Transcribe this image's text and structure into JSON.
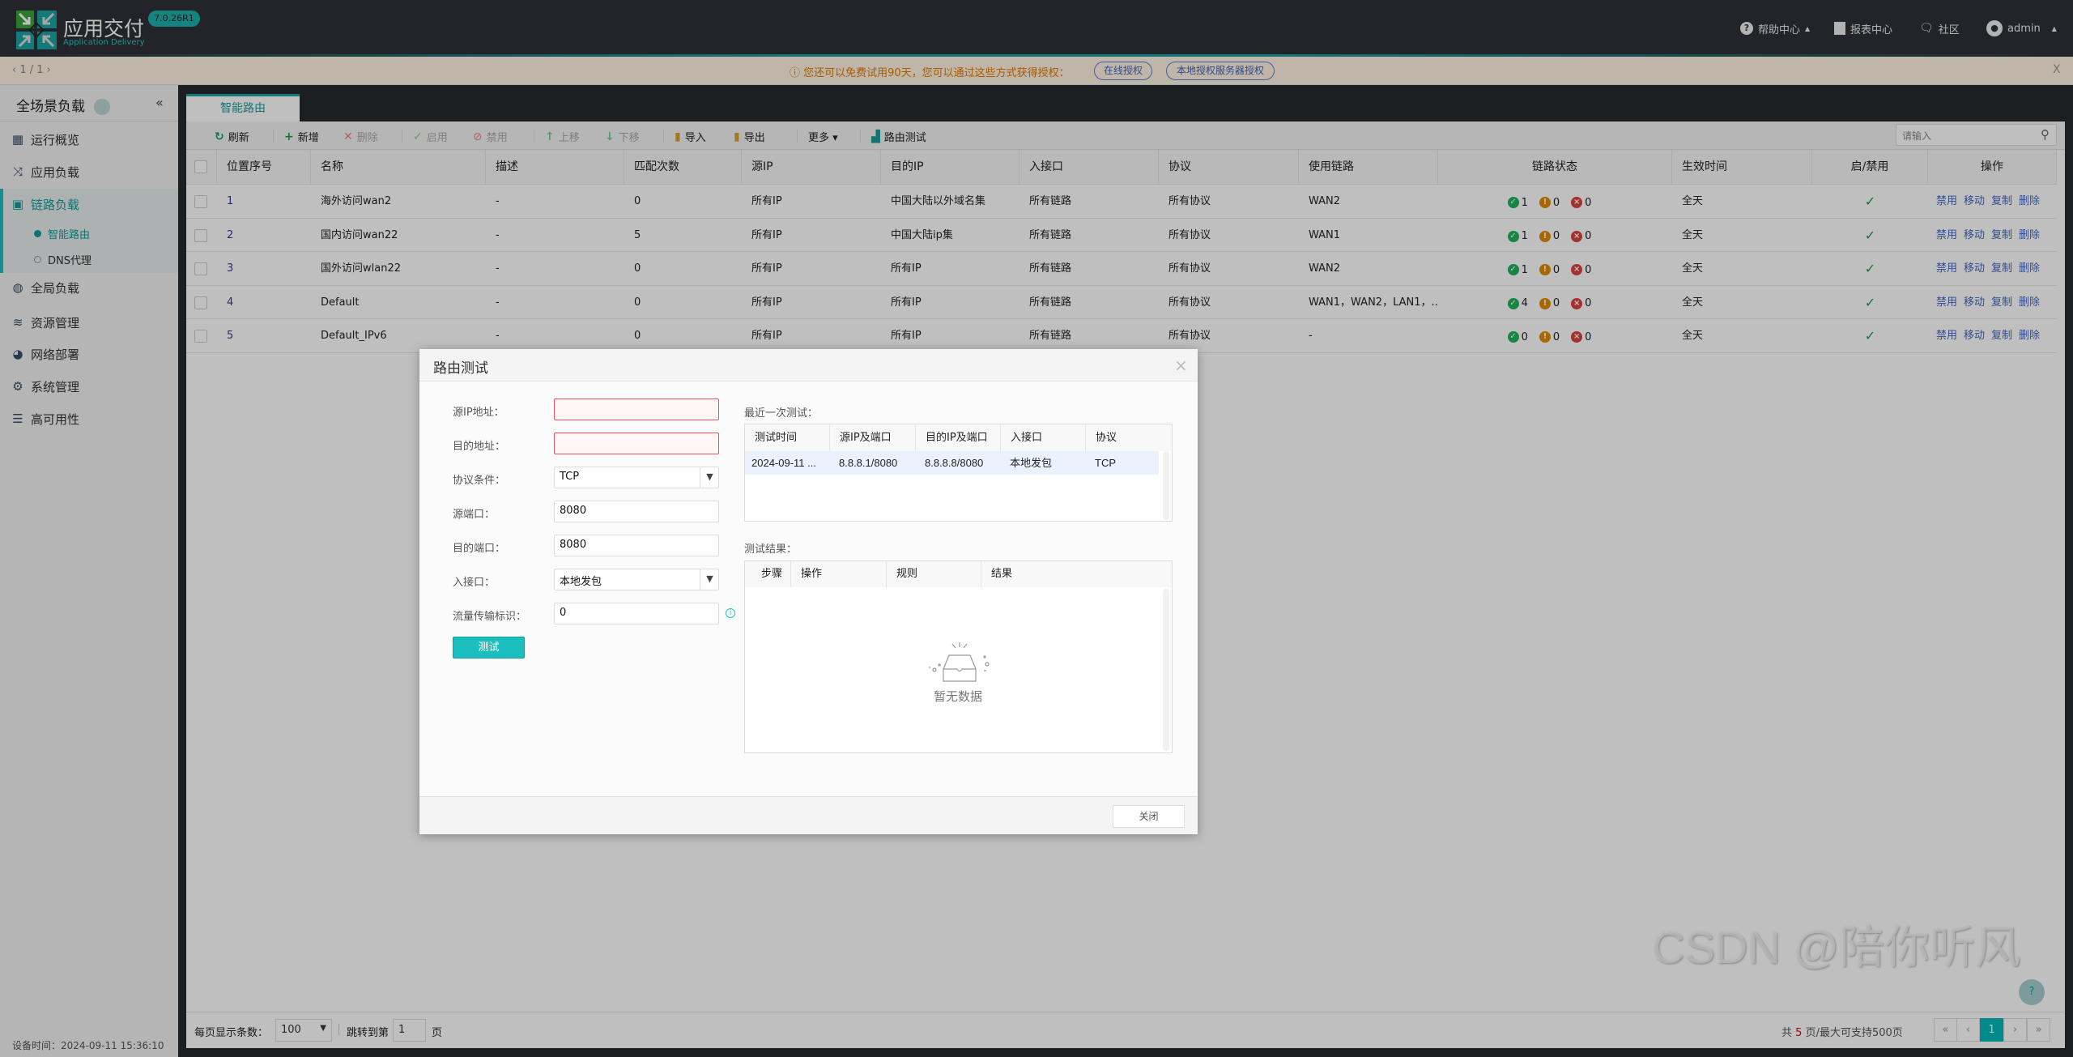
{
  "header": {
    "app_title": "应用交付",
    "app_subtitle": "Application Delivery",
    "version": "7.0.26R1",
    "nav": [
      {
        "label": "帮助中心",
        "icon": "question-circle-icon"
      },
      {
        "label": "报表中心",
        "icon": "report-chart-icon"
      },
      {
        "label": "社区",
        "icon": "chat-bubbles-icon"
      },
      {
        "label": "admin",
        "icon": "user-avatar-icon"
      }
    ]
  },
  "banner": {
    "pager": "1 / 1",
    "message": "您还可以免费试用90天，您可以通过这些方式获得授权：",
    "buttons": [
      "在线授权",
      "本地授权服务器授权"
    ],
    "close": "X"
  },
  "sidebar": {
    "title": "全场景负载",
    "collapse": "«",
    "items": [
      {
        "label": "运行概览",
        "icon": "dashboard-icon"
      },
      {
        "label": "应用负载",
        "icon": "shuffle-icon"
      },
      {
        "label": "链路负载",
        "icon": "link-load-icon",
        "active": true
      },
      {
        "label": "全局负载",
        "icon": "dns-globe-icon"
      },
      {
        "label": "资源管理",
        "icon": "layers-icon"
      },
      {
        "label": "网络部署",
        "icon": "globe-icon"
      },
      {
        "label": "系统管理",
        "icon": "gear-icon"
      },
      {
        "label": "高可用性",
        "icon": "server-stack-icon"
      }
    ],
    "subitems": [
      {
        "label": "智能路由",
        "active": true
      },
      {
        "label": "DNS代理",
        "active": false
      }
    ],
    "device_time": "设备时间：2024-09-11 15:36:10"
  },
  "tab": "智能路由",
  "toolbar": {
    "items": [
      {
        "label": "刷新",
        "icon": "refresh-icon",
        "enabled": true
      },
      {
        "label": "新增",
        "icon": "plus-icon",
        "enabled": true
      },
      {
        "label": "删除",
        "icon": "x-icon",
        "enabled": false
      },
      {
        "label": "启用",
        "icon": "check-icon",
        "enabled": false
      },
      {
        "label": "禁用",
        "icon": "ban-icon",
        "enabled": false
      },
      {
        "label": "上移",
        "icon": "arrow-up-icon",
        "enabled": false
      },
      {
        "label": "下移",
        "icon": "arrow-down-icon",
        "enabled": false
      },
      {
        "label": "导入",
        "icon": "import-icon",
        "enabled": true
      },
      {
        "label": "导出",
        "icon": "export-icon",
        "enabled": true
      },
      {
        "label": "更多 ▾",
        "icon": "",
        "enabled": true
      },
      {
        "label": "路由测试",
        "icon": "route-test-icon",
        "enabled": true
      }
    ],
    "search_placeholder": "请输入"
  },
  "table": {
    "columns": [
      "位置序号",
      "名称",
      "描述",
      "匹配次数",
      "源IP",
      "目的IP",
      "入接口",
      "协议",
      "使用链路",
      "链路状态",
      "生效时间",
      "启/禁用",
      "操作"
    ],
    "rows": [
      {
        "pos": "1",
        "name": "海外访问wan2",
        "desc": "-",
        "hits": "0",
        "src": "所有IP",
        "dst": "中国大陆以外域名集",
        "iface": "所有链路",
        "proto": "所有协议",
        "links": "WAN2",
        "ok": "1",
        "warn": "0",
        "err": "0",
        "time": "全天",
        "enabled": true
      },
      {
        "pos": "2",
        "name": "国内访问wan22",
        "desc": "-",
        "hits": "5",
        "src": "所有IP",
        "dst": "中国大陆ip集",
        "iface": "所有链路",
        "proto": "所有协议",
        "links": "WAN1",
        "ok": "1",
        "warn": "0",
        "err": "0",
        "time": "全天",
        "enabled": true
      },
      {
        "pos": "3",
        "name": "国外访问wlan22",
        "desc": "-",
        "hits": "0",
        "src": "所有IP",
        "dst": "所有IP",
        "iface": "所有链路",
        "proto": "所有协议",
        "links": "WAN2",
        "ok": "1",
        "warn": "0",
        "err": "0",
        "time": "全天",
        "enabled": true
      },
      {
        "pos": "4",
        "name": "Default",
        "desc": "-",
        "hits": "0",
        "src": "所有IP",
        "dst": "所有IP",
        "iface": "所有链路",
        "proto": "所有协议",
        "links": "WAN1，WAN2，LAN1，...",
        "ok": "4",
        "warn": "0",
        "err": "0",
        "time": "全天",
        "enabled": true
      },
      {
        "pos": "5",
        "name": "Default_IPv6",
        "desc": "-",
        "hits": "0",
        "src": "所有IP",
        "dst": "所有IP",
        "iface": "所有链路",
        "proto": "所有协议",
        "links": "-",
        "ok": "0",
        "warn": "0",
        "err": "0",
        "time": "全天",
        "enabled": true
      }
    ],
    "actions": [
      "禁用",
      "移动",
      "复制",
      "删除"
    ]
  },
  "pagination": {
    "page_size_label": "每页显示条数：",
    "page_size": "100",
    "jump_label": "跳转到第",
    "jump_value": "1",
    "page_unit": "页",
    "summary_prefix": "共",
    "summary_count": "5",
    "summary_suffix": "页/最大可支持500页",
    "buttons": [
      "«",
      "‹",
      "1",
      "›",
      "»"
    ],
    "current": "1"
  },
  "modal": {
    "title": "路由测试",
    "close": "×",
    "form": [
      {
        "label": "源IP地址：",
        "value": "",
        "error": true
      },
      {
        "label": "目的地址：",
        "value": "",
        "error": true
      },
      {
        "label": "协议条件：",
        "value": "TCP",
        "dropdown": true
      },
      {
        "label": "源端口：",
        "value": "8080"
      },
      {
        "label": "目的端口：",
        "value": "8080"
      },
      {
        "label": "入接口：",
        "value": "本地发包",
        "dropdown": true
      },
      {
        "label": "流量传输标识：",
        "value": "0",
        "info": true
      }
    ],
    "test_button": "测试",
    "recent_label": "最近一次测试：",
    "recent_columns": [
      "测试时间",
      "源IP及端口",
      "目的IP及端口",
      "入接口",
      "协议"
    ],
    "recent_row": [
      "2024-09-11 ...",
      "8.8.8.1/8080",
      "8.8.8.8/8080",
      "本地发包",
      "TCP"
    ],
    "result_label": "测试结果：",
    "result_columns": [
      "步骤",
      "操作",
      "规则",
      "结果"
    ],
    "empty_text": "暂无数据",
    "close_button": "关闭"
  },
  "help_button": "?",
  "watermark": "CSDN @陪你听风",
  "colors": {
    "accent": "#1bbfbf",
    "link": "#4466bb",
    "ok": "#1db35a",
    "warn": "#e08a00",
    "err": "#d9433f",
    "error_border": "#e5545e"
  }
}
